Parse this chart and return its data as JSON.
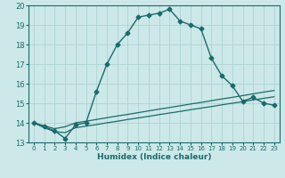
{
  "xlabel": "Humidex (Indice chaleur)",
  "ylabel": "",
  "bg_color": "#cce8e8",
  "grid_color": "#aacfcf",
  "line_color": "#1a6b6b",
  "xlim": [
    -0.5,
    23.5
  ],
  "ylim": [
    13,
    20
  ],
  "xticks": [
    0,
    1,
    2,
    3,
    4,
    5,
    6,
    7,
    8,
    9,
    10,
    11,
    12,
    13,
    14,
    15,
    16,
    17,
    18,
    19,
    20,
    21,
    22,
    23
  ],
  "yticks": [
    13,
    14,
    15,
    16,
    17,
    18,
    19,
    20
  ],
  "line1_x": [
    0,
    1,
    2,
    3,
    4,
    5,
    6,
    7,
    8,
    9,
    10,
    11,
    12,
    13,
    14,
    15,
    16,
    17,
    18,
    19,
    20,
    21,
    22,
    23
  ],
  "line1_y": [
    14.0,
    13.8,
    13.6,
    13.2,
    13.9,
    14.0,
    15.6,
    17.0,
    18.0,
    18.6,
    19.4,
    19.5,
    19.6,
    19.8,
    19.2,
    19.0,
    18.8,
    17.3,
    16.4,
    15.9,
    15.1,
    15.3,
    15.0,
    14.9
  ],
  "line2_x": [
    0,
    1,
    2,
    3,
    4,
    5,
    6,
    7,
    8,
    9,
    10,
    11,
    12,
    13,
    14,
    15,
    16,
    17,
    18,
    19,
    20,
    21,
    22,
    23
  ],
  "line2_y": [
    14.0,
    13.85,
    13.7,
    13.8,
    14.0,
    14.08,
    14.17,
    14.26,
    14.35,
    14.43,
    14.52,
    14.61,
    14.7,
    14.78,
    14.87,
    14.96,
    15.04,
    15.13,
    15.22,
    15.3,
    15.39,
    15.48,
    15.57,
    15.65
  ],
  "line3_x": [
    0,
    1,
    2,
    3,
    4,
    5,
    6,
    7,
    8,
    9,
    10,
    11,
    12,
    13,
    14,
    15,
    16,
    17,
    18,
    19,
    20,
    21,
    22,
    23
  ],
  "line3_y": [
    14.0,
    13.75,
    13.55,
    13.5,
    13.75,
    13.83,
    13.91,
    14.0,
    14.08,
    14.17,
    14.25,
    14.33,
    14.42,
    14.5,
    14.58,
    14.67,
    14.75,
    14.83,
    14.92,
    15.0,
    15.08,
    15.17,
    15.25,
    15.33
  ]
}
